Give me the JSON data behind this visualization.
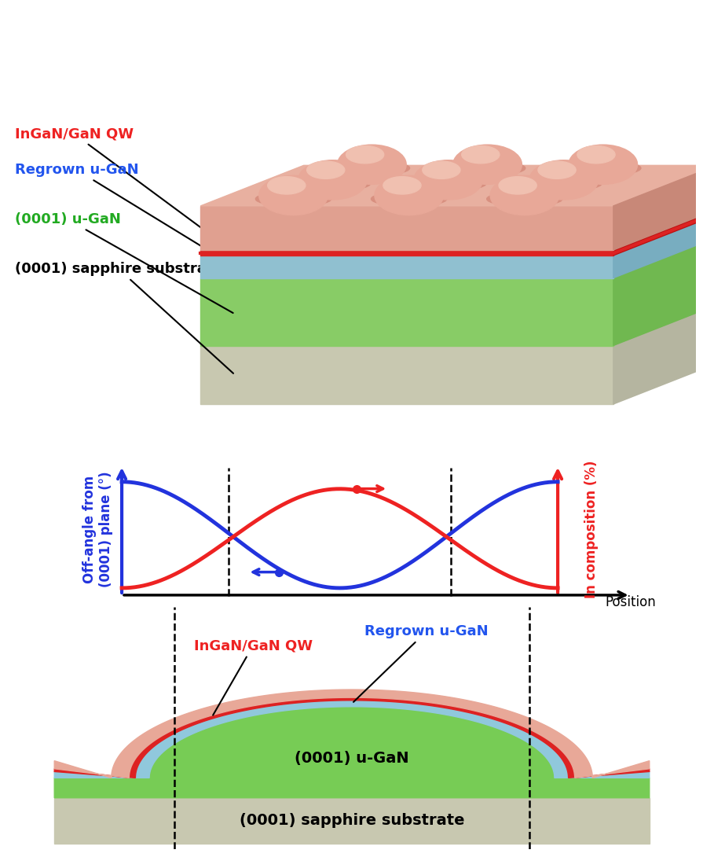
{
  "bg_color": "#ffffff",
  "top_colors": {
    "sapphire_front": "#c8c8b0",
    "sapphire_top": "#d8d8c0",
    "sapphire_side": "#b5b5a0",
    "ugan_front": "#88cc66",
    "ugan_top": "#99dd77",
    "ugan_side": "#70b850",
    "regrown_front": "#90c0d0",
    "regrown_top": "#a5d5e5",
    "regrown_side": "#78adc0",
    "pink_front": "#e0a090",
    "pink_top": "#e8b0a0",
    "pink_side": "#c88878",
    "lens_base": "#d89080",
    "lens_mid": "#e8a898",
    "lens_highlight": "#f0c0b0",
    "red_line": "#dd2222"
  },
  "labels_top": {
    "InGaN_QW": {
      "text": "InGaN/GaN QW",
      "color": "#ee2222",
      "fontsize": 13
    },
    "Regrown_uGaN": {
      "text": "Regrown u-GaN",
      "color": "#2255ee",
      "fontsize": 13
    },
    "uGaN_0001": {
      "text": "(0001) u-GaN",
      "color": "#22aa22",
      "fontsize": 13
    },
    "sapphire": {
      "text": "(0001) sapphire substrate",
      "color": "#000000",
      "fontsize": 13
    }
  },
  "graph": {
    "blue": "#2233dd",
    "red": "#ee2222",
    "axis_color": "#000000",
    "dashed_color": "#000000",
    "left_label": "Off-angle from\n(0001) plane (°)",
    "right_label": "In composition (%)",
    "x_label": "Position",
    "left_label_color": "#2233dd",
    "right_label_color": "#ee2222"
  },
  "bottom_colors": {
    "sapphire": "#c8c8b0",
    "ugan_green": "#77cc55",
    "ugan_flat": "#77cc55",
    "cyan": "#90c8dc",
    "red_qw": "#dd2222",
    "pink": "#e8a898"
  },
  "bottom_labels": {
    "InGaN_QW": {
      "text": "InGaN/GaN QW",
      "color": "#ee2222",
      "fontsize": 13
    },
    "Regrown_uGaN": {
      "text": "Regrown u-GaN",
      "color": "#2255ee",
      "fontsize": 13
    },
    "uGaN_0001": {
      "text": "(0001) u-GaN",
      "color": "#000000",
      "fontsize": 14
    },
    "sapphire": {
      "text": "(0001) sapphire substrate",
      "color": "#000000",
      "fontsize": 14
    }
  }
}
